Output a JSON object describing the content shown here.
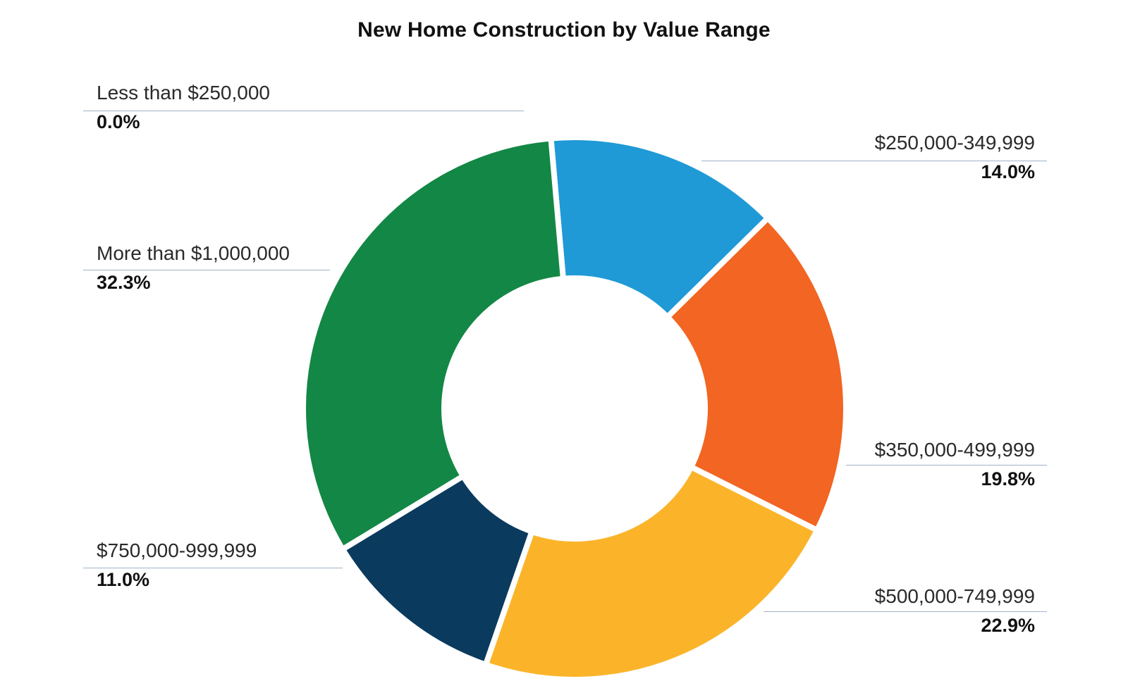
{
  "chart_data": {
    "type": "pie",
    "title": "New Home Construction by Value Range",
    "donut": true,
    "categories": [
      "Less than $250,000",
      "$250,000-349,999",
      "$350,000-499,999",
      "$500,000-749,999",
      "$750,000-999,999",
      "More than $1,000,000"
    ],
    "values": [
      0.0,
      14.0,
      19.8,
      22.9,
      11.0,
      32.3
    ],
    "value_labels": [
      "0.0%",
      "14.0%",
      "19.8%",
      "22.9%",
      "11.0%",
      "32.3%"
    ],
    "colors": [
      "#1f9ad6",
      "#1f9ad6",
      "#f26522",
      "#fbb42a",
      "#0a3a5e",
      "#138745"
    ],
    "unit": "%"
  }
}
